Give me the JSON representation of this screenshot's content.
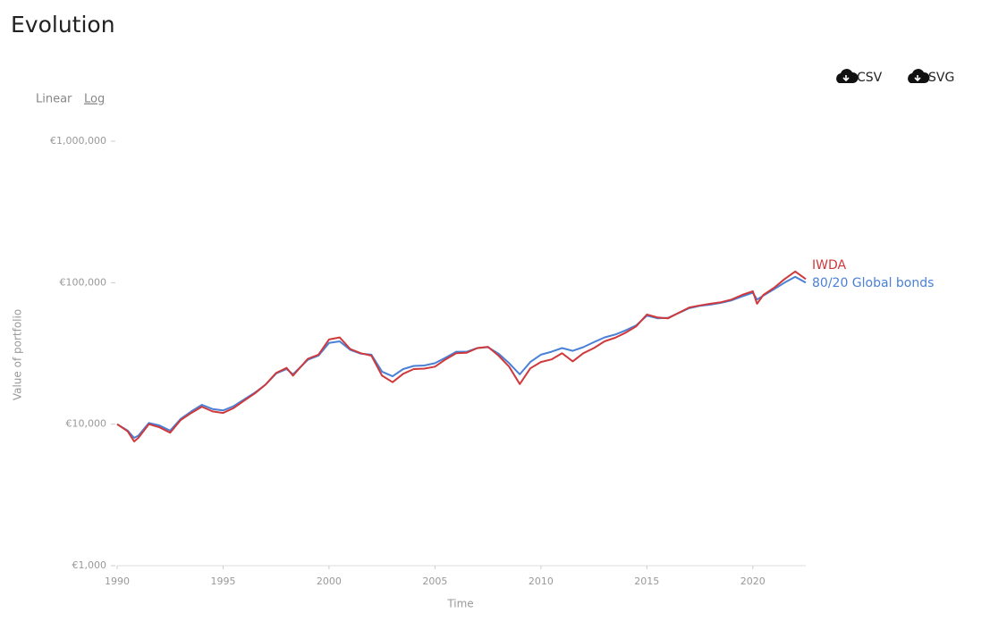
{
  "controls": {
    "scales": [
      "Linear",
      "Log"
    ],
    "downloads": [
      "CSV",
      "SVG"
    ]
  },
  "chart_data": {
    "type": "line",
    "title": "Evolution",
    "x_label": "Time",
    "y_label": "Value of portfolio",
    "yscale": "log",
    "xlim": [
      1990,
      2022.5
    ],
    "ylim": [
      1000,
      1000000
    ],
    "xticks": [
      1990,
      1995,
      2000,
      2005,
      2010,
      2015,
      2020
    ],
    "yticks": [
      {
        "value": 1000,
        "label": "€1,000"
      },
      {
        "value": 10000,
        "label": "€10,000"
      },
      {
        "value": 100000,
        "label": "€100,000"
      },
      {
        "value": 1000000,
        "label": "€1,000,000"
      }
    ],
    "x": [
      1990,
      1990.5,
      1990.8,
      1991,
      1991.5,
      1992,
      1992.5,
      1993,
      1993.5,
      1994,
      1994.5,
      1995,
      1995.5,
      1996,
      1996.5,
      1997,
      1997.5,
      1998,
      1998.3,
      1999,
      1999.5,
      2000,
      2000.5,
      2001,
      2001.5,
      2002,
      2002.5,
      2003,
      2003.5,
      2004,
      2004.5,
      2005,
      2005.5,
      2006,
      2006.5,
      2007,
      2007.5,
      2008,
      2008.5,
      2009,
      2009.5,
      2010,
      2010.5,
      2011,
      2011.5,
      2012,
      2012.5,
      2013,
      2013.5,
      2014,
      2014.5,
      2015,
      2015.5,
      2016,
      2016.5,
      2017,
      2017.5,
      2018,
      2018.5,
      2019,
      2019.5,
      2020,
      2020.2,
      2020.5,
      2021,
      2021.5,
      2022,
      2022.5
    ],
    "series": [
      {
        "name": "IWDA",
        "color": "#d0393b",
        "values": [
          10000,
          8900,
          7550,
          8000,
          10000,
          9500,
          8700,
          10700,
          12000,
          13300,
          12300,
          12000,
          13000,
          14700,
          16500,
          19000,
          23000,
          25000,
          22000,
          29000,
          31000,
          39700,
          41000,
          34000,
          31700,
          30500,
          22000,
          19800,
          22700,
          24500,
          24700,
          25500,
          28700,
          31700,
          32000,
          34500,
          35200,
          30500,
          25500,
          19200,
          24800,
          27500,
          28700,
          31700,
          27800,
          31700,
          34500,
          38500,
          40800,
          44300,
          49200,
          59500,
          56800,
          56000,
          61200,
          66800,
          69000,
          71000,
          72800,
          76000,
          82000,
          87000,
          71000,
          82000,
          92000,
          106000,
          120000,
          106000
        ]
      },
      {
        "name": "80/20 Global bonds",
        "color": "#4a80d6",
        "values": [
          10000,
          9000,
          8000,
          8300,
          10200,
          9800,
          9000,
          10900,
          12300,
          13700,
          12800,
          12500,
          13400,
          15000,
          16700,
          19000,
          22800,
          24500,
          22500,
          28500,
          30500,
          37500,
          38500,
          33500,
          31500,
          31000,
          23500,
          21800,
          24500,
          25800,
          26000,
          27000,
          29500,
          32500,
          32500,
          34500,
          35000,
          31500,
          27000,
          22500,
          27500,
          31000,
          32500,
          34500,
          33000,
          35000,
          38000,
          41000,
          43000,
          46000,
          50000,
          58500,
          56000,
          56500,
          61000,
          66000,
          68500,
          70000,
          72000,
          75000,
          80000,
          85000,
          76000,
          81000,
          90000,
          100000,
          110000,
          100000
        ]
      }
    ]
  }
}
